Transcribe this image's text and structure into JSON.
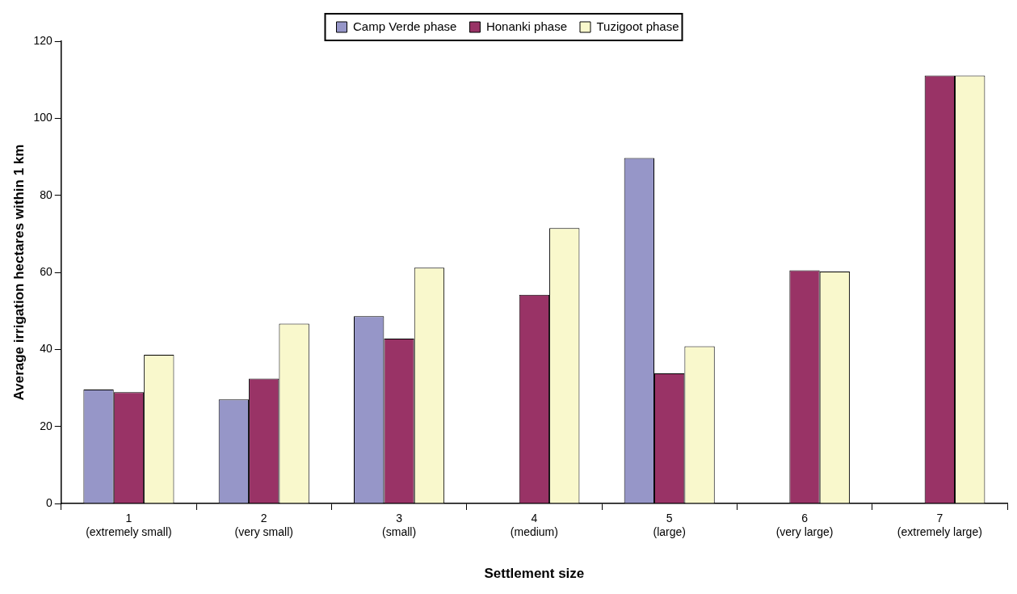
{
  "chart_data": {
    "type": "bar",
    "xlabel": "Settlement size",
    "ylabel": "Average irrigation hectares within 1 km",
    "categories": [
      "1\n(extremely small)",
      "2\n(very small)",
      "3\n(small)",
      "4\n(medium)",
      "5\n(large)",
      "6\n(very large)",
      "7\n(extremely large)"
    ],
    "series": [
      {
        "name": "Camp Verde phase",
        "color": "#9696c8",
        "values": [
          29.6,
          27.0,
          48.6,
          null,
          89.7,
          null,
          null
        ]
      },
      {
        "name": "Honanki phase",
        "color": "#993366",
        "values": [
          28.9,
          32.4,
          42.8,
          54.2,
          33.8,
          60.5,
          111.1
        ]
      },
      {
        "name": "Tuzigoot phase",
        "color": "#f9f8cc",
        "values": [
          38.6,
          46.7,
          61.2,
          71.5,
          40.8,
          60.2,
          111.1
        ]
      }
    ],
    "ylim": [
      0,
      120
    ],
    "yticks": [
      0,
      20,
      40,
      60,
      80,
      100,
      120
    ],
    "grid": false,
    "legend": "top"
  }
}
